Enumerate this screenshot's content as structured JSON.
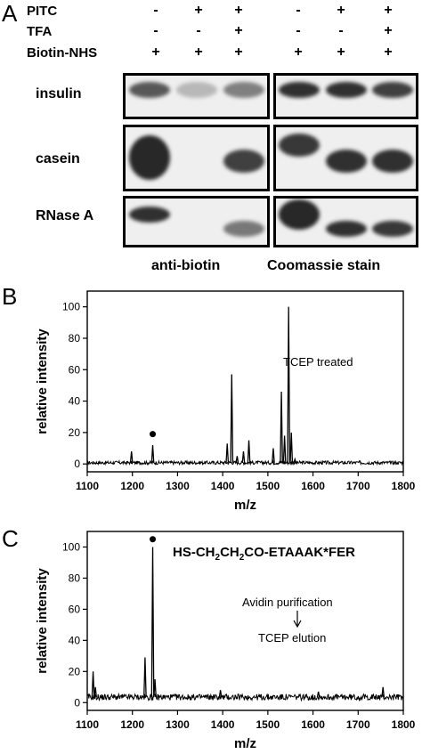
{
  "panel_a": {
    "letter": "A",
    "conditions": [
      {
        "label": "PITC",
        "signs": [
          "-",
          "+",
          "+",
          "-",
          "+",
          "+"
        ]
      },
      {
        "label": "TFA",
        "signs": [
          "-",
          "-",
          "+",
          "-",
          "-",
          "+"
        ]
      },
      {
        "label": "Biotin-NHS",
        "signs": [
          "+",
          "+",
          "+",
          "+",
          "+",
          "+"
        ]
      }
    ],
    "proteins": [
      "insulin",
      "casein",
      "RNase A"
    ],
    "captions": {
      "left": "anti-biotin",
      "right": "Coomassie stain"
    },
    "band_intensity": {
      "anti_biotin": [
        [
          0.7,
          0.1,
          0.45
        ],
        [
          1.0,
          0.0,
          0.85
        ],
        [
          0.95,
          0.0,
          0.5
        ]
      ],
      "coomassie": [
        [
          0.95,
          0.95,
          0.85
        ],
        [
          0.9,
          0.95,
          0.95
        ],
        [
          1.0,
          0.95,
          0.9
        ]
      ]
    }
  },
  "panel_b": {
    "letter": "B",
    "annotation": "TCEP treated"
  },
  "panel_c": {
    "letter": "C",
    "peptide": {
      "pre": "HS-CH",
      "sub1": "2",
      "mid": "CH",
      "sub2": "2",
      "post": "CO-ETAAAK*FER"
    },
    "step1": "Avidin purification",
    "step2": "TCEP elution"
  },
  "chart_data": [
    {
      "type": "line",
      "panel": "B",
      "xlabel": "m/z",
      "ylabel": "relative intensity",
      "xlim": [
        1100,
        1800
      ],
      "ylim": [
        -5,
        110
      ],
      "xticks": [
        1100,
        1200,
        1300,
        1400,
        1500,
        1600,
        1700,
        1800
      ],
      "yticks": [
        0,
        20,
        40,
        60,
        80,
        100
      ],
      "marker_peak": {
        "x": 1245,
        "y": 19
      },
      "peaks": [
        {
          "x": 1198,
          "y": 8
        },
        {
          "x": 1245,
          "y": 12
        },
        {
          "x": 1410,
          "y": 13
        },
        {
          "x": 1420,
          "y": 57
        },
        {
          "x": 1432,
          "y": 5
        },
        {
          "x": 1446,
          "y": 8
        },
        {
          "x": 1458,
          "y": 15
        },
        {
          "x": 1512,
          "y": 10
        },
        {
          "x": 1530,
          "y": 46
        },
        {
          "x": 1537,
          "y": 18
        },
        {
          "x": 1546,
          "y": 100
        },
        {
          "x": 1552,
          "y": 20
        },
        {
          "x": 1560,
          "y": 3
        }
      ]
    },
    {
      "type": "line",
      "panel": "C",
      "xlabel": "m/z",
      "ylabel": "relative intensity",
      "xlim": [
        1100,
        1800
      ],
      "ylim": [
        -5,
        110
      ],
      "xticks": [
        1100,
        1200,
        1300,
        1400,
        1500,
        1600,
        1700,
        1800
      ],
      "yticks": [
        0,
        20,
        40,
        60,
        80,
        100
      ],
      "marker_peak": {
        "x": 1245,
        "y": 105
      },
      "peaks": [
        {
          "x": 1113,
          "y": 20
        },
        {
          "x": 1118,
          "y": 10
        },
        {
          "x": 1228,
          "y": 29
        },
        {
          "x": 1245,
          "y": 100
        },
        {
          "x": 1250,
          "y": 15
        },
        {
          "x": 1395,
          "y": 8
        },
        {
          "x": 1612,
          "y": 7
        },
        {
          "x": 1755,
          "y": 10
        }
      ]
    }
  ]
}
